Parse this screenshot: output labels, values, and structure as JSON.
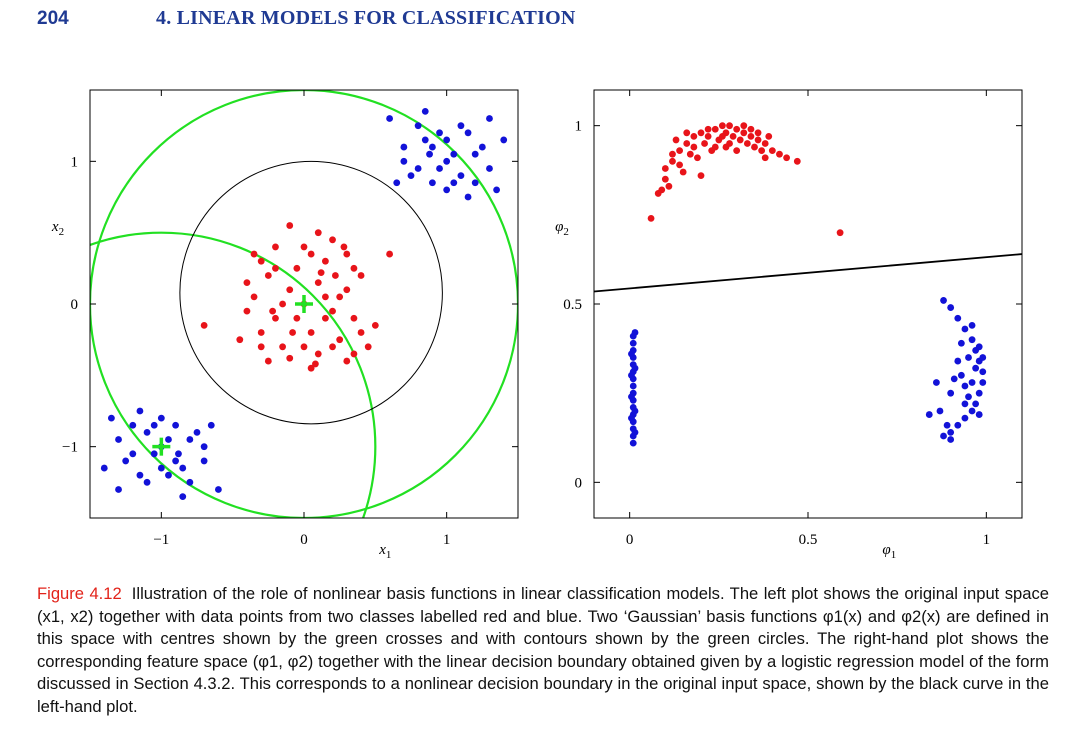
{
  "header": {
    "page_number": "204",
    "chapter_title": "4. LINEAR MODELS FOR CLASSIFICATION"
  },
  "colors": {
    "red": "#e8141a",
    "blue": "#1212d8",
    "green": "#22e022",
    "header_blue": "#1f3a93",
    "caption_red": "#e2231a"
  },
  "caption": {
    "label": "Figure 4.12",
    "text": "Illustration of the role of nonlinear basis functions in linear classification models. The left plot shows the original input space (x1, x2) together with data points from two classes labelled red and blue. Two ‘Gaussian’ basis functions φ1(x) and φ2(x) are defined in this space with centres shown by the green crosses and with contours shown by the green circles. The right-hand plot shows the corresponding feature space (φ1, φ2) together with the linear decision boundary obtained given by a logistic regression model of the form discussed in Section 4.3.2. This corresponds to a nonlinear decision boundary in the original input space, shown by the black curve in the left-hand plot."
  },
  "chart_data": [
    {
      "type": "scatter",
      "xlabel": "x1",
      "ylabel": "x2",
      "xlim": [
        -1.5,
        1.5
      ],
      "ylim": [
        -1.5,
        1.5
      ],
      "xticks": [
        "-1",
        "0",
        "1"
      ],
      "yticks": [
        "-1",
        "0",
        "1"
      ],
      "centres": [
        [
          0,
          0
        ],
        [
          -1,
          -1
        ]
      ],
      "green_contours": [
        {
          "centre": [
            0,
            0
          ],
          "radius": 1.5
        },
        {
          "centre": [
            -1,
            -1
          ],
          "radius": 1.5
        }
      ],
      "decision_boundary": {
        "centre": [
          0.05,
          0.08
        ],
        "radius": 0.92
      },
      "series": [
        {
          "name": "red",
          "points": [
            [
              0.0,
              0.0
            ],
            [
              0.1,
              0.15
            ],
            [
              -0.1,
              0.1
            ],
            [
              0.2,
              -0.05
            ],
            [
              -0.2,
              -0.1
            ],
            [
              0.05,
              -0.2
            ],
            [
              -0.05,
              0.25
            ],
            [
              0.15,
              0.3
            ],
            [
              -0.25,
              0.2
            ],
            [
              0.3,
              0.1
            ],
            [
              -0.3,
              -0.2
            ],
            [
              0.25,
              -0.25
            ],
            [
              -0.15,
              -0.3
            ],
            [
              0.1,
              -0.35
            ],
            [
              -0.35,
              0.05
            ],
            [
              0.35,
              -0.1
            ],
            [
              0.0,
              0.4
            ],
            [
              -0.4,
              -0.05
            ],
            [
              0.4,
              0.2
            ],
            [
              -0.2,
              0.4
            ],
            [
              0.2,
              0.45
            ],
            [
              0.1,
              0.5
            ],
            [
              -0.1,
              0.55
            ],
            [
              0.3,
              0.35
            ],
            [
              -0.3,
              0.3
            ],
            [
              0.45,
              -0.3
            ],
            [
              -0.45,
              -0.25
            ],
            [
              0.3,
              -0.4
            ],
            [
              -0.25,
              -0.4
            ],
            [
              0.05,
              -0.45
            ],
            [
              0.6,
              0.35
            ],
            [
              -0.7,
              -0.15
            ],
            [
              0.15,
              -0.1
            ],
            [
              -0.15,
              0.0
            ],
            [
              0.25,
              0.05
            ],
            [
              -0.05,
              -0.1
            ],
            [
              0.12,
              0.22
            ],
            [
              0.35,
              0.25
            ],
            [
              -0.35,
              0.35
            ],
            [
              0.4,
              -0.2
            ],
            [
              -0.08,
              -0.2
            ],
            [
              0.2,
              -0.3
            ],
            [
              -0.4,
              0.15
            ],
            [
              0.5,
              -0.15
            ],
            [
              0.0,
              -0.3
            ],
            [
              0.05,
              0.35
            ],
            [
              -0.2,
              0.25
            ],
            [
              0.28,
              0.4
            ],
            [
              0.15,
              0.05
            ],
            [
              -0.1,
              -0.38
            ],
            [
              0.08,
              -0.42
            ],
            [
              0.35,
              -0.35
            ],
            [
              -0.3,
              -0.3
            ],
            [
              0.22,
              0.2
            ],
            [
              -0.22,
              -0.05
            ]
          ]
        },
        {
          "name": "blue",
          "points": [
            [
              1.0,
              1.0
            ],
            [
              0.9,
              1.1
            ],
            [
              1.1,
              0.9
            ],
            [
              0.8,
              0.95
            ],
            [
              1.2,
              1.05
            ],
            [
              0.95,
              1.2
            ],
            [
              1.05,
              0.85
            ],
            [
              0.85,
              1.15
            ],
            [
              1.15,
              1.2
            ],
            [
              0.7,
              1.1
            ],
            [
              1.3,
              0.95
            ],
            [
              1.0,
              0.8
            ],
            [
              0.75,
              0.9
            ],
            [
              1.25,
              1.1
            ],
            [
              0.9,
              0.85
            ],
            [
              1.1,
              1.25
            ],
            [
              0.6,
              1.3
            ],
            [
              1.35,
              0.8
            ],
            [
              0.8,
              1.25
            ],
            [
              1.05,
              1.05
            ],
            [
              0.95,
              0.95
            ],
            [
              1.2,
              0.85
            ],
            [
              0.7,
              1.0
            ],
            [
              1.4,
              1.15
            ],
            [
              1.3,
              1.3
            ],
            [
              0.85,
              1.35
            ],
            [
              1.15,
              0.75
            ],
            [
              0.65,
              0.85
            ],
            [
              1.0,
              1.15
            ],
            [
              0.88,
              1.05
            ],
            [
              -1.0,
              -1.0
            ],
            [
              -0.9,
              -1.1
            ],
            [
              -1.1,
              -0.9
            ],
            [
              -0.8,
              -0.95
            ],
            [
              -1.2,
              -1.05
            ],
            [
              -0.95,
              -1.2
            ],
            [
              -1.05,
              -0.85
            ],
            [
              -0.85,
              -1.15
            ],
            [
              -1.15,
              -1.2
            ],
            [
              -0.7,
              -1.1
            ],
            [
              -1.3,
              -0.95
            ],
            [
              -1.0,
              -0.8
            ],
            [
              -0.75,
              -0.9
            ],
            [
              -1.25,
              -1.1
            ],
            [
              -0.9,
              -0.85
            ],
            [
              -1.1,
              -1.25
            ],
            [
              -0.6,
              -1.3
            ],
            [
              -1.35,
              -0.8
            ],
            [
              -0.8,
              -1.25
            ],
            [
              -1.05,
              -1.05
            ],
            [
              -0.95,
              -0.95
            ],
            [
              -1.2,
              -0.85
            ],
            [
              -0.7,
              -1.0
            ],
            [
              -1.4,
              -1.15
            ],
            [
              -1.3,
              -1.3
            ],
            [
              -0.85,
              -1.35
            ],
            [
              -1.15,
              -0.75
            ],
            [
              -0.65,
              -0.85
            ],
            [
              -1.0,
              -1.15
            ],
            [
              -0.88,
              -1.05
            ]
          ]
        }
      ]
    },
    {
      "type": "scatter",
      "xlabel": "φ1",
      "ylabel": "φ2",
      "xlim": [
        -0.1,
        1.1
      ],
      "ylim": [
        -0.1,
        1.1
      ],
      "xticks": [
        "0",
        "0.5",
        "1"
      ],
      "yticks": [
        "0",
        "0.5",
        "1"
      ],
      "decision_line": [
        [
          -0.1,
          0.535
        ],
        [
          1.1,
          0.64
        ]
      ],
      "series": [
        {
          "name": "red",
          "points": [
            [
              0.06,
              0.74
            ],
            [
              0.08,
              0.81
            ],
            [
              0.1,
              0.85
            ],
            [
              0.12,
              0.9
            ],
            [
              0.14,
              0.93
            ],
            [
              0.16,
              0.95
            ],
            [
              0.18,
              0.97
            ],
            [
              0.2,
              0.98
            ],
            [
              0.22,
              0.99
            ],
            [
              0.24,
              0.99
            ],
            [
              0.26,
              1.0
            ],
            [
              0.28,
              1.0
            ],
            [
              0.3,
              0.99
            ],
            [
              0.32,
              0.98
            ],
            [
              0.34,
              0.97
            ],
            [
              0.36,
              0.96
            ],
            [
              0.38,
              0.95
            ],
            [
              0.4,
              0.93
            ],
            [
              0.42,
              0.92
            ],
            [
              0.44,
              0.91
            ],
            [
              0.47,
              0.9
            ],
            [
              0.13,
              0.96
            ],
            [
              0.17,
              0.92
            ],
            [
              0.21,
              0.95
            ],
            [
              0.25,
              0.96
            ],
            [
              0.29,
              0.97
            ],
            [
              0.33,
              0.95
            ],
            [
              0.37,
              0.93
            ],
            [
              0.11,
              0.83
            ],
            [
              0.15,
              0.87
            ],
            [
              0.19,
              0.91
            ],
            [
              0.23,
              0.93
            ],
            [
              0.27,
              0.98
            ],
            [
              0.31,
              0.96
            ],
            [
              0.35,
              0.94
            ],
            [
              0.39,
              0.97
            ],
            [
              0.2,
              0.86
            ],
            [
              0.24,
              0.94
            ],
            [
              0.28,
              0.95
            ],
            [
              0.32,
              1.0
            ],
            [
              0.36,
              0.98
            ],
            [
              0.14,
              0.89
            ],
            [
              0.12,
              0.92
            ],
            [
              0.16,
              0.98
            ],
            [
              0.26,
              0.97
            ],
            [
              0.22,
              0.97
            ],
            [
              0.3,
              0.93
            ],
            [
              0.18,
              0.94
            ],
            [
              0.1,
              0.88
            ],
            [
              0.09,
              0.82
            ],
            [
              0.59,
              0.7
            ],
            [
              0.34,
              0.99
            ],
            [
              0.27,
              0.94
            ],
            [
              0.38,
              0.91
            ]
          ]
        },
        {
          "name": "blue",
          "points": [
            [
              0.01,
              0.11
            ],
            [
              0.01,
              0.13
            ],
            [
              0.01,
              0.15
            ],
            [
              0.01,
              0.17
            ],
            [
              0.01,
              0.19
            ],
            [
              0.01,
              0.21
            ],
            [
              0.01,
              0.23
            ],
            [
              0.01,
              0.25
            ],
            [
              0.01,
              0.27
            ],
            [
              0.01,
              0.29
            ],
            [
              0.01,
              0.31
            ],
            [
              0.01,
              0.33
            ],
            [
              0.01,
              0.35
            ],
            [
              0.01,
              0.37
            ],
            [
              0.01,
              0.39
            ],
            [
              0.01,
              0.41
            ],
            [
              0.015,
              0.42
            ],
            [
              0.005,
              0.36
            ],
            [
              0.005,
              0.24
            ],
            [
              0.005,
              0.18
            ],
            [
              0.015,
              0.32
            ],
            [
              0.015,
              0.2
            ],
            [
              0.015,
              0.14
            ],
            [
              0.005,
              0.3
            ],
            [
              0.88,
              0.13
            ],
            [
              0.9,
              0.14
            ],
            [
              0.92,
              0.16
            ],
            [
              0.94,
              0.18
            ],
            [
              0.96,
              0.2
            ],
            [
              0.97,
              0.22
            ],
            [
              0.98,
              0.25
            ],
            [
              0.99,
              0.28
            ],
            [
              0.99,
              0.31
            ],
            [
              0.98,
              0.34
            ],
            [
              0.97,
              0.37
            ],
            [
              0.96,
              0.4
            ],
            [
              0.94,
              0.43
            ],
            [
              0.92,
              0.46
            ],
            [
              0.9,
              0.49
            ],
            [
              0.88,
              0.51
            ],
            [
              0.87,
              0.2
            ],
            [
              0.9,
              0.25
            ],
            [
              0.93,
              0.3
            ],
            [
              0.95,
              0.35
            ],
            [
              0.96,
              0.28
            ],
            [
              0.94,
              0.22
            ],
            [
              0.92,
              0.34
            ],
            [
              0.98,
              0.38
            ],
            [
              0.86,
              0.28
            ],
            [
              0.84,
              0.19
            ],
            [
              0.91,
              0.29
            ],
            [
              0.97,
              0.32
            ],
            [
              0.95,
              0.24
            ],
            [
              0.89,
              0.16
            ],
            [
              0.93,
              0.39
            ],
            [
              0.98,
              0.19
            ],
            [
              0.96,
              0.44
            ],
            [
              0.9,
              0.12
            ],
            [
              0.99,
              0.35
            ],
            [
              0.94,
              0.27
            ]
          ]
        }
      ]
    }
  ]
}
